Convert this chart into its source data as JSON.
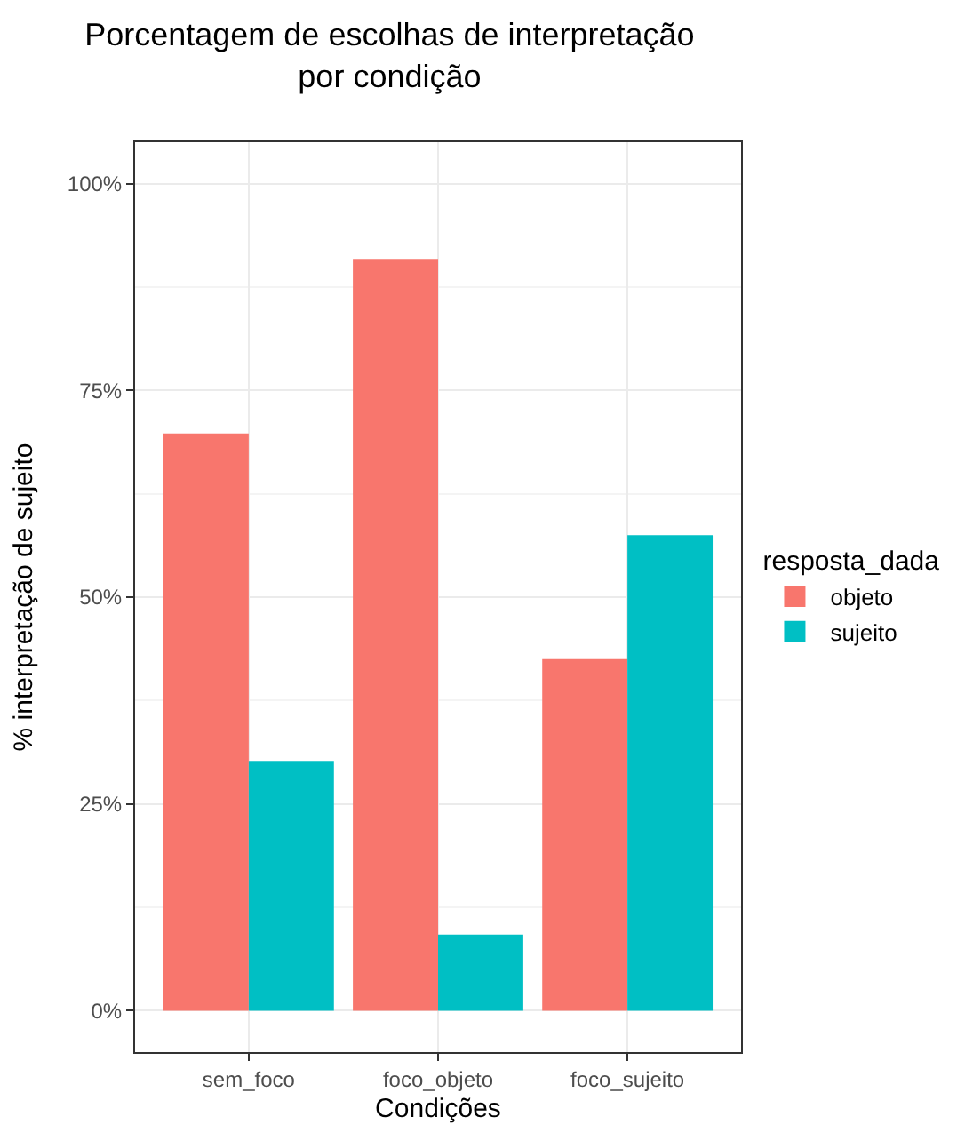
{
  "chart_data": {
    "type": "bar",
    "title": "Porcentagem de escolhas de interpretação\npor condição",
    "xlabel": "Condições",
    "ylabel": "% interpretação de sujeito",
    "legend_title": "resposta_dada",
    "categories": [
      "sem_foco",
      "foco_objeto",
      "foco_sujeito"
    ],
    "series": [
      {
        "name": "objeto",
        "color": "#f8766d",
        "values": [
          69.8,
          90.8,
          42.5
        ]
      },
      {
        "name": "sujeito",
        "color": "#00bfc4",
        "values": [
          30.2,
          9.2,
          57.5
        ]
      }
    ],
    "ylim": [
      -5,
      105
    ],
    "yticks": [
      {
        "value": 0,
        "label": "0%"
      },
      {
        "value": 25,
        "label": "25%"
      },
      {
        "value": 50,
        "label": "50%"
      },
      {
        "value": 75,
        "label": "75%"
      },
      {
        "value": 100,
        "label": "100%"
      }
    ],
    "grid": true,
    "legend": "right"
  }
}
